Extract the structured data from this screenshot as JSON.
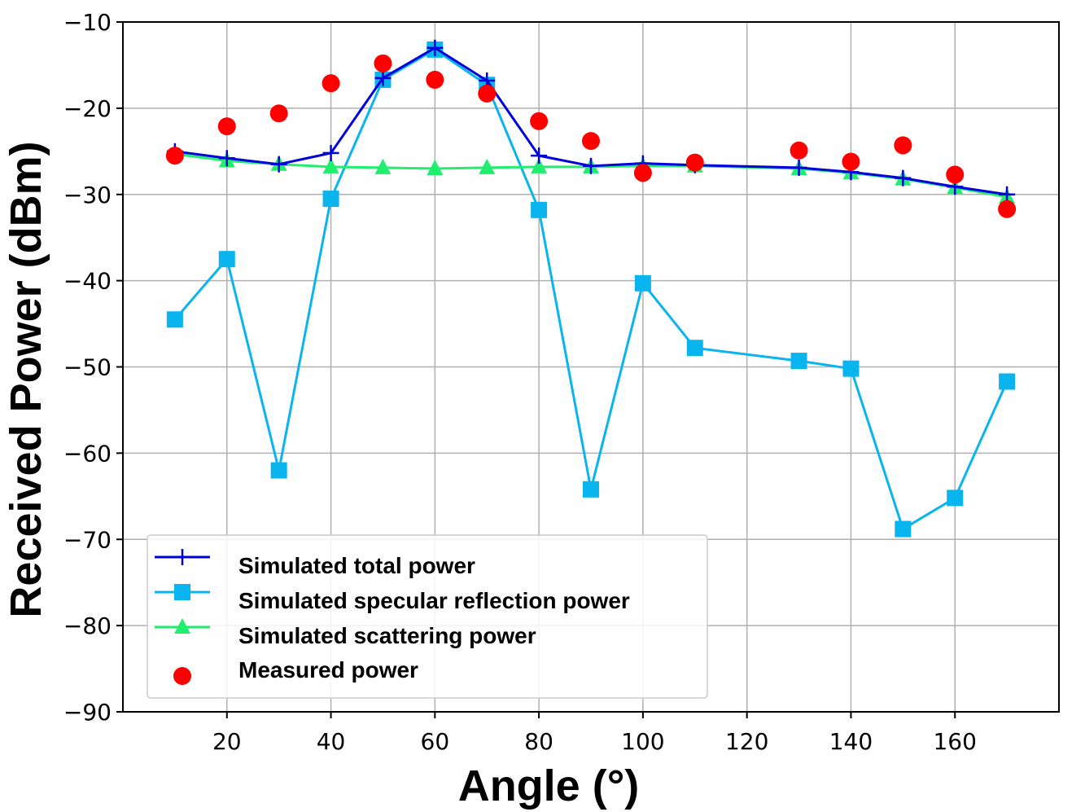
{
  "chart_data": {
    "type": "line",
    "title": "",
    "xlabel": "Angle (°)",
    "ylabel": "Received Power (dBm)",
    "xlim": [
      0,
      180
    ],
    "ylim": [
      -90,
      -10
    ],
    "xticks": [
      20,
      40,
      60,
      80,
      100,
      120,
      140,
      160
    ],
    "yticks": [
      -10,
      -20,
      -30,
      -40,
      -50,
      -60,
      -70,
      -80,
      -90
    ],
    "xtick_labels": [
      "20",
      "40",
      "60",
      "80",
      "100",
      "120",
      "140",
      "160"
    ],
    "ytick_labels": [
      "−10",
      "−20",
      "−30",
      "−40",
      "−50",
      "−60",
      "−70",
      "−80",
      "−90"
    ],
    "grid": true,
    "legend_position": "lower-left",
    "series": [
      {
        "name": "Simulated total power",
        "color": "#0000dd",
        "marker": "plus",
        "line": true,
        "x": [
          10,
          20,
          30,
          40,
          50,
          60,
          70,
          80,
          90,
          100,
          110,
          130,
          140,
          150,
          160,
          170
        ],
        "values": [
          -25.0,
          -25.8,
          -26.5,
          -25.2,
          -16.5,
          -13.0,
          -16.8,
          -25.5,
          -26.7,
          -26.4,
          -26.6,
          -26.9,
          -27.4,
          -28.1,
          -29.1,
          -30.0
        ]
      },
      {
        "name": "Simulated specular reflection power",
        "color": "#0ab4ee",
        "marker": "square",
        "line": true,
        "x": [
          10,
          20,
          30,
          40,
          50,
          60,
          70,
          80,
          90,
          100,
          110,
          130,
          140,
          150,
          160,
          170
        ],
        "values": [
          -44.5,
          -37.5,
          -62.0,
          -30.5,
          -16.7,
          -13.2,
          -17.3,
          -31.8,
          -64.2,
          -40.3,
          -47.8,
          -49.3,
          -50.2,
          -68.8,
          -65.2,
          -51.7
        ]
      },
      {
        "name": "Simulated scattering power",
        "color": "#22ee6e",
        "marker": "triangle",
        "line": true,
        "x": [
          10,
          20,
          30,
          40,
          50,
          60,
          70,
          80,
          90,
          100,
          110,
          130,
          140,
          150,
          160,
          170
        ],
        "values": [
          -25.3,
          -26.1,
          -26.5,
          -26.8,
          -26.9,
          -27.0,
          -26.9,
          -26.8,
          -26.8,
          -26.7,
          -26.7,
          -27.0,
          -27.5,
          -28.2,
          -29.2,
          -30.3
        ]
      },
      {
        "name": "Measured power",
        "color": "#ff0000",
        "marker": "circle",
        "line": false,
        "x": [
          10,
          20,
          30,
          40,
          50,
          60,
          70,
          80,
          90,
          100,
          110,
          130,
          140,
          150,
          160,
          170
        ],
        "values": [
          -25.5,
          -22.1,
          -20.6,
          -17.1,
          -14.8,
          -16.7,
          -18.3,
          -21.5,
          -23.8,
          -27.5,
          -26.3,
          -24.9,
          -26.2,
          -24.3,
          -27.7,
          -31.7
        ]
      }
    ]
  }
}
